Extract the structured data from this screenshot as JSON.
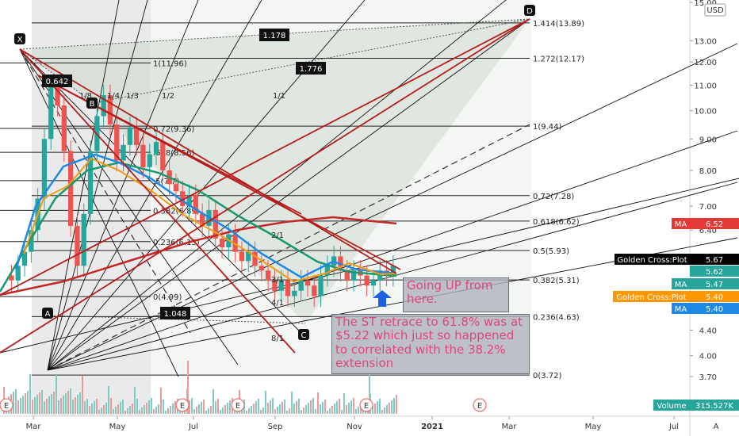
{
  "axis": {
    "currency": "USD",
    "auto_label": "A"
  },
  "notes": {
    "going_up": "Going UP from here.",
    "retrace": "The ST retrace to 61.8% was at $5.22 which just so happened to correlated with the 38.2% extension"
  },
  "colors": {
    "price_up": "#26a69a",
    "price_down": "#ef5350",
    "ma_red": "#c62828",
    "ma_green": "#1a9870",
    "ma_blue": "#1e88e5",
    "ma_orange": "#f39c12",
    "trend_red": "#b71c1c",
    "note_text": "#e0457b",
    "tag_black": "#000000",
    "tag_green": "#26a69a",
    "tag_orange": "#ff9800",
    "tag_blue": "#1e88e5",
    "tag_red": "#e53935"
  },
  "chart_data": {
    "type": "candlestick",
    "scale": "log",
    "y_ticks": [
      15.0,
      13.0,
      12.0,
      11.0,
      10.0,
      9.0,
      8.0,
      7.0,
      6.4,
      5.8,
      5.2,
      4.8,
      4.4,
      4.0,
      3.7
    ],
    "x_ticks": [
      "Mar",
      "May",
      "Jul",
      "Sep",
      "Nov",
      "2021",
      "Mar",
      "May",
      "Jul"
    ],
    "fib_levels": [
      {
        "label": "1.414(13.89)",
        "value": 13.89
      },
      {
        "label": "1.272(12.17)",
        "value": 12.17
      },
      {
        "label": "1(9.44)",
        "value": 9.44
      },
      {
        "label": "0.72(7.28)",
        "value": 7.28
      },
      {
        "label": "0.618(6.62)",
        "value": 6.62
      },
      {
        "label": "0.5(5.93)",
        "value": 5.93
      },
      {
        "label": "0.382(5.31)",
        "value": 5.31
      },
      {
        "label": "0.236(4.63)",
        "value": 4.63
      },
      {
        "label": "0(3.72)",
        "value": 3.72
      }
    ],
    "inner_fib_levels": [
      {
        "label": "1(11.96)",
        "value": 11.96
      },
      {
        "label": "0.72(9.36)",
        "value": 9.36
      },
      {
        "label": ".618(8.56)",
        "value": 8.56
      },
      {
        "label": ".5(7.7)",
        "value": 7.7
      },
      {
        "label": "0.382(6.89)",
        "value": 6.89
      },
      {
        "label": "0.236(6.13)",
        "value": 6.13
      },
      {
        "label": "0(4.99)",
        "value": 4.99
      }
    ],
    "pattern_points": [
      {
        "name": "X",
        "value": 12.5
      },
      {
        "name": "A",
        "value": 3.72
      },
      {
        "name": "B",
        "value": 10.4
      },
      {
        "name": "C",
        "value": 4.4
      },
      {
        "name": "D",
        "value": 13.89
      }
    ],
    "pattern_ratios": [
      "0.642",
      "1.178",
      "1.776",
      "1.048"
    ],
    "fan_labels": [
      "1/8",
      "1/4",
      "1/3",
      "1/2",
      "1/1",
      "2/1",
      "3/1",
      "4/1",
      "8/1"
    ],
    "price_tags": [
      {
        "label": "MA",
        "value": "6.52"
      },
      {
        "label": "Golden Cross:Plot",
        "value": "5.67"
      },
      {
        "label": "",
        "value": "5.62"
      },
      {
        "label": "MA",
        "value": "5.47"
      },
      {
        "label": "Golden Cross:Plot",
        "value": "5.40"
      },
      {
        "label": "MA",
        "value": "5.40"
      },
      {
        "label": "Volume",
        "value": "315.527K"
      }
    ],
    "earnings_markers": [
      "E",
      "E",
      "E",
      "E",
      "E",
      "E"
    ]
  }
}
